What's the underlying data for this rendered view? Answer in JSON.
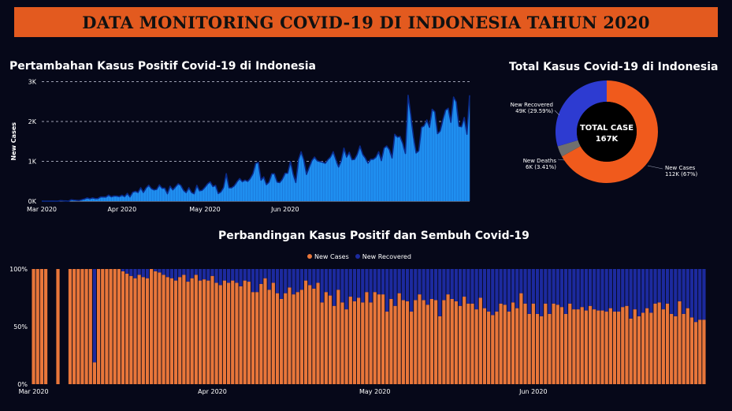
{
  "header": {
    "title": "DATA MONITORING COVID-19 DI INDONESIA TAHUN 2020"
  },
  "colors": {
    "background": "#060819",
    "banner": "#e35a1f",
    "line_area": "#1f8ff0",
    "line_stroke": "#0a2a8a",
    "new_cases": "#e8763a",
    "new_recovered": "#1c2a9e",
    "new_deaths": "#6f6f6f",
    "donut_cases": "#f05a1c",
    "donut_recovered": "#2d3bd1"
  },
  "chart_data": [
    {
      "type": "area",
      "title": "Pertambahan Kasus Positif Covid-19 di Indonesia",
      "xlabel": "",
      "ylabel": "New Cases",
      "ylim": [
        0,
        3000
      ],
      "yticks": [
        "0K",
        "1K",
        "2K",
        "3K"
      ],
      "xticks": [
        "Mar 2020",
        "Apr 2020",
        "May 2020",
        "Jun 2020"
      ],
      "grid": true,
      "x_start": "2020-03-02",
      "series": [
        {
          "values": [
            2,
            0,
            0,
            0,
            2,
            0,
            0,
            13,
            8,
            7,
            0,
            35,
            27,
            21,
            17,
            38,
            55,
            82,
            60,
            81,
            64,
            65,
            106,
            105,
            103,
            153,
            109,
            130,
            129,
            114,
            149,
            113,
            196,
            106,
            223,
            247,
            218,
            337,
            219,
            330,
            399,
            316,
            282,
            297,
            407,
            325,
            327,
            185,
            375,
            283,
            357,
            436,
            396,
            275,
            214,
            337,
            219,
            186,
            395,
            260,
            275,
            347,
            433,
            484,
            367,
            395,
            191,
            233,
            347,
            689,
            338,
            336,
            387,
            484,
            568,
            490,
            529,
            496,
            573,
            693,
            949,
            973,
            526,
            609,
            415,
            479,
            686,
            687,
            480,
            467,
            557,
            700,
            703,
            993,
            684,
            467,
            1043,
            1241,
            1031,
            672,
            847,
            1017,
            1106,
            1014,
            993,
            979,
            949,
            1041,
            1111,
            1240,
            1037,
            857,
            1014,
            1331,
            1106,
            1226,
            1041,
            1051,
            1178,
            1385,
            1178,
            1082,
            954,
            1051,
            1051,
            1106,
            1240,
            1018,
            1331,
            1385,
            1293,
            1082,
            1678,
            1607,
            1624,
            1447,
            1198,
            2657,
            2156,
            1611,
            1209,
            1268,
            1852,
            1893,
            2038,
            1853,
            2306,
            2240,
            1693,
            1762,
            2039,
            2282,
            2331,
            1979,
            2612,
            2491,
            1882,
            1868,
            2101,
            1679,
            2657
          ],
          "name": ""
        }
      ]
    },
    {
      "type": "pie",
      "title": "Total Kasus Covid-19 di Indonesia",
      "center_label": "TOTAL CASE",
      "center_value": "167K",
      "slices": [
        {
          "name": "New Cases",
          "label": "New Cases",
          "value_label": "112K (67%)",
          "percent": 67.0
        },
        {
          "name": "New Deaths",
          "label": "New Deaths",
          "value_label": "6K (3.41%)",
          "percent": 3.41
        },
        {
          "name": "New Recovered",
          "label": "New Recovered",
          "value_label": "49K (29.59%)",
          "percent": 29.59
        }
      ]
    },
    {
      "type": "bar",
      "stacked": "percent",
      "title": "Perbandingan Kasus Positif dan Sembuh Covid-19",
      "ylim": [
        0,
        100
      ],
      "yticks": [
        "0%",
        "50%",
        "100%"
      ],
      "xticks": [
        "Mar 2020",
        "Apr 2020",
        "May 2020",
        "Jun 2020"
      ],
      "legend_position": "top",
      "series": [
        {
          "name": "New Cases",
          "values": [
            100,
            100,
            100,
            100,
            0,
            0,
            100,
            0,
            0,
            100,
            100,
            100,
            100,
            100,
            100,
            19,
            100,
            100,
            100,
            100,
            100,
            100,
            98,
            96,
            94,
            92,
            95,
            93,
            92,
            100,
            98,
            97,
            95,
            93,
            92,
            90,
            93,
            95,
            89,
            92,
            95,
            90,
            91,
            90,
            94,
            88,
            86,
            90,
            88,
            90,
            88,
            85,
            90,
            89,
            80,
            80,
            87,
            92,
            82,
            88,
            79,
            74,
            79,
            84,
            78,
            80,
            82,
            90,
            86,
            83,
            88,
            71,
            80,
            77,
            68,
            82,
            71,
            65,
            76,
            72,
            75,
            71,
            80,
            71,
            80,
            78,
            78,
            63,
            74,
            68,
            79,
            73,
            72,
            63,
            73,
            78,
            73,
            69,
            74,
            73,
            59,
            73,
            78,
            74,
            72,
            68,
            76,
            70,
            70,
            65,
            75,
            66,
            63,
            60,
            63,
            70,
            69,
            63,
            71,
            66,
            79,
            70,
            61,
            70,
            61,
            59,
            70,
            61,
            70,
            69,
            67,
            61,
            70,
            65,
            65,
            67,
            64,
            68,
            65,
            64,
            64,
            63,
            66,
            63,
            63,
            67,
            68,
            57,
            65,
            59,
            62,
            66,
            62,
            70,
            71,
            65,
            70,
            61,
            59,
            72,
            61,
            66,
            58,
            54,
            56,
            56
          ]
        },
        {
          "name": "New Recovered",
          "values": [
            0,
            0,
            0,
            0,
            0,
            0,
            0,
            0,
            0,
            0,
            0,
            0,
            0,
            0,
            0,
            81,
            0,
            0,
            0,
            0,
            0,
            0,
            2,
            4,
            6,
            8,
            5,
            7,
            8,
            0,
            2,
            3,
            5,
            7,
            8,
            10,
            7,
            5,
            11,
            8,
            5,
            10,
            9,
            10,
            6,
            12,
            14,
            10,
            12,
            10,
            12,
            15,
            10,
            11,
            20,
            20,
            13,
            8,
            18,
            12,
            21,
            26,
            21,
            16,
            22,
            20,
            18,
            10,
            14,
            17,
            12,
            29,
            20,
            23,
            32,
            18,
            29,
            35,
            24,
            28,
            25,
            29,
            20,
            29,
            20,
            22,
            22,
            37,
            26,
            32,
            21,
            27,
            28,
            37,
            27,
            22,
            27,
            31,
            26,
            27,
            41,
            27,
            22,
            26,
            28,
            32,
            24,
            30,
            30,
            35,
            25,
            34,
            37,
            40,
            37,
            30,
            31,
            37,
            29,
            34,
            21,
            30,
            39,
            30,
            39,
            41,
            30,
            39,
            30,
            31,
            33,
            39,
            30,
            35,
            35,
            33,
            36,
            32,
            35,
            36,
            36,
            37,
            34,
            37,
            37,
            33,
            32,
            43,
            35,
            41,
            38,
            34,
            38,
            30,
            29,
            35,
            30,
            39,
            41,
            28,
            39,
            34,
            42,
            46,
            44,
            44
          ]
        }
      ]
    }
  ]
}
